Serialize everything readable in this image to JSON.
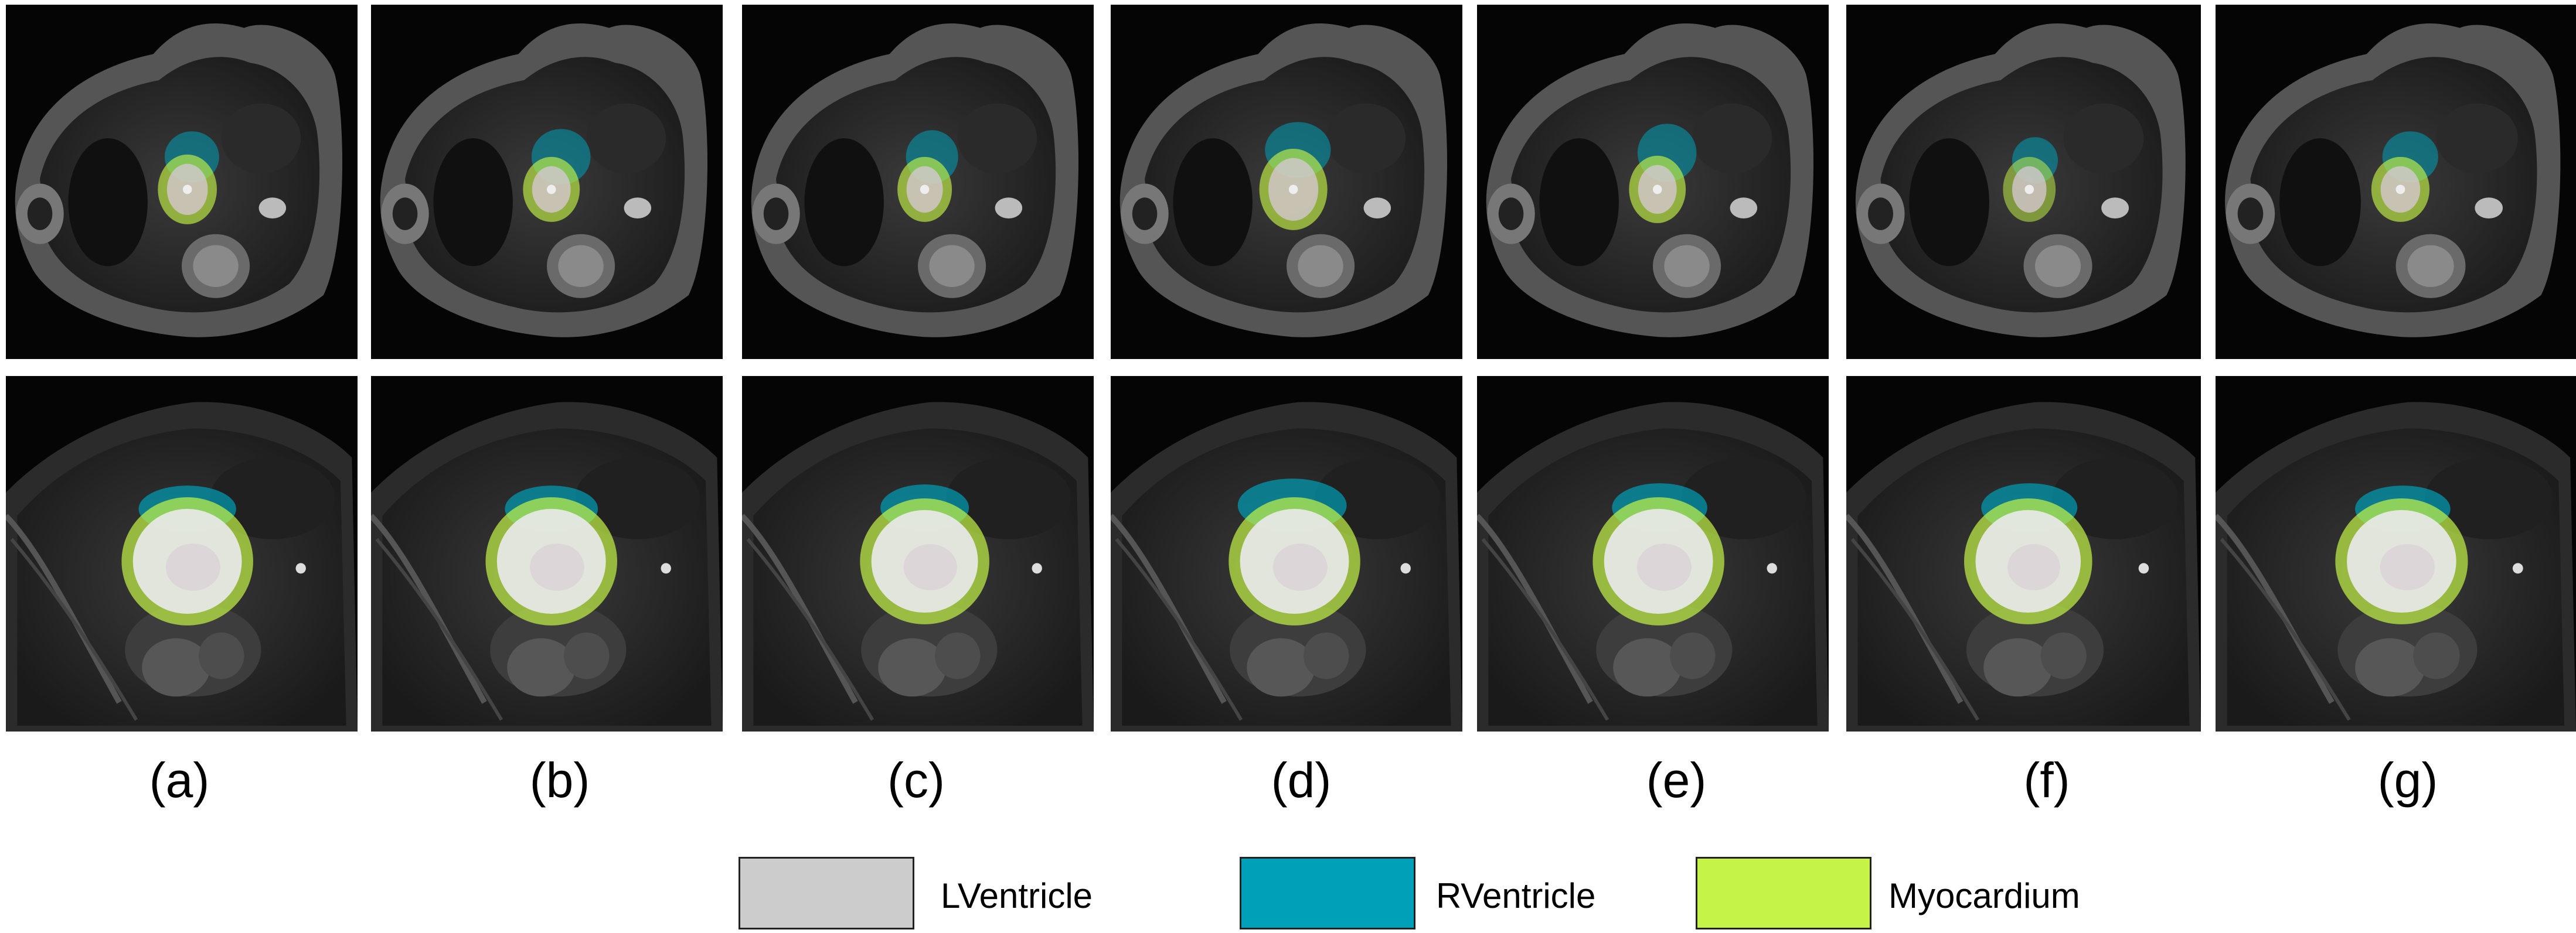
{
  "figure": {
    "panels": [
      {
        "label": "(a)"
      },
      {
        "label": "(b)"
      },
      {
        "label": "(c)"
      },
      {
        "label": "(d)"
      },
      {
        "label": "(e)"
      },
      {
        "label": "(f)"
      },
      {
        "label": "(g)"
      }
    ],
    "rows": [
      {
        "view": "basal short-axis cardiac MRI slice"
      },
      {
        "view": "mid short-axis cardiac MRI slice"
      }
    ],
    "legend": [
      {
        "label": "LVentricle",
        "color": "#cccccc"
      },
      {
        "label": "RVentricle",
        "color": "#00a0b8"
      },
      {
        "label": "Myocardium",
        "color": "#c5f347"
      }
    ]
  }
}
